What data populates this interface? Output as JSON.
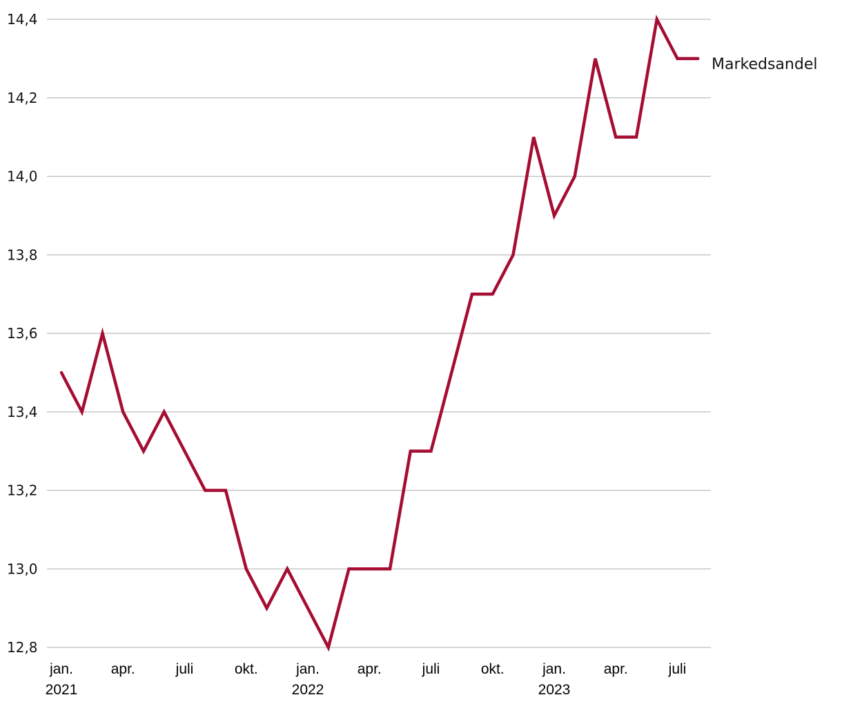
{
  "chart_data": {
    "type": "line",
    "title": "",
    "xlabel": "",
    "ylabel": "",
    "ylim": [
      12.8,
      14.4
    ],
    "yticks": [
      "12,8",
      "13,0",
      "13,2",
      "13,4",
      "13,6",
      "13,8",
      "14,0",
      "14,2",
      "14,4"
    ],
    "grid": true,
    "legend": "right, at line end",
    "x": [
      "2021-01",
      "2021-02",
      "2021-03",
      "2021-04",
      "2021-05",
      "2021-06",
      "2021-07",
      "2021-08",
      "2021-09",
      "2021-10",
      "2021-11",
      "2021-12",
      "2022-01",
      "2022-02",
      "2022-03",
      "2022-04",
      "2022-05",
      "2022-06",
      "2022-07",
      "2022-08",
      "2022-09",
      "2022-10",
      "2022-11",
      "2022-12",
      "2023-01",
      "2023-02",
      "2023-03",
      "2023-04",
      "2023-05",
      "2023-06",
      "2023-07",
      "2023-08"
    ],
    "xticks": [
      {
        "x": "2021-01",
        "month": "jan.",
        "year": "2021"
      },
      {
        "x": "2021-04",
        "month": "apr.",
        "year": ""
      },
      {
        "x": "2021-07",
        "month": "juli",
        "year": ""
      },
      {
        "x": "2021-10",
        "month": "okt.",
        "year": ""
      },
      {
        "x": "2022-01",
        "month": "jan.",
        "year": "2022"
      },
      {
        "x": "2022-04",
        "month": "apr.",
        "year": ""
      },
      {
        "x": "2022-07",
        "month": "juli",
        "year": ""
      },
      {
        "x": "2022-10",
        "month": "okt.",
        "year": ""
      },
      {
        "x": "2023-01",
        "month": "jan.",
        "year": "2023"
      },
      {
        "x": "2023-04",
        "month": "apr.",
        "year": ""
      },
      {
        "x": "2023-07",
        "month": "juli",
        "year": ""
      }
    ],
    "series": [
      {
        "name": "Markedsandel",
        "color": "#a50d32",
        "values": [
          13.5,
          13.4,
          13.6,
          13.4,
          13.3,
          13.4,
          13.3,
          13.2,
          13.2,
          13.0,
          12.9,
          13.0,
          12.9,
          12.8,
          13.0,
          13.0,
          13.0,
          13.3,
          13.3,
          13.5,
          13.7,
          13.7,
          13.8,
          14.1,
          13.9,
          14.0,
          14.3,
          14.1,
          14.1,
          14.4,
          14.3,
          14.3
        ]
      }
    ]
  }
}
